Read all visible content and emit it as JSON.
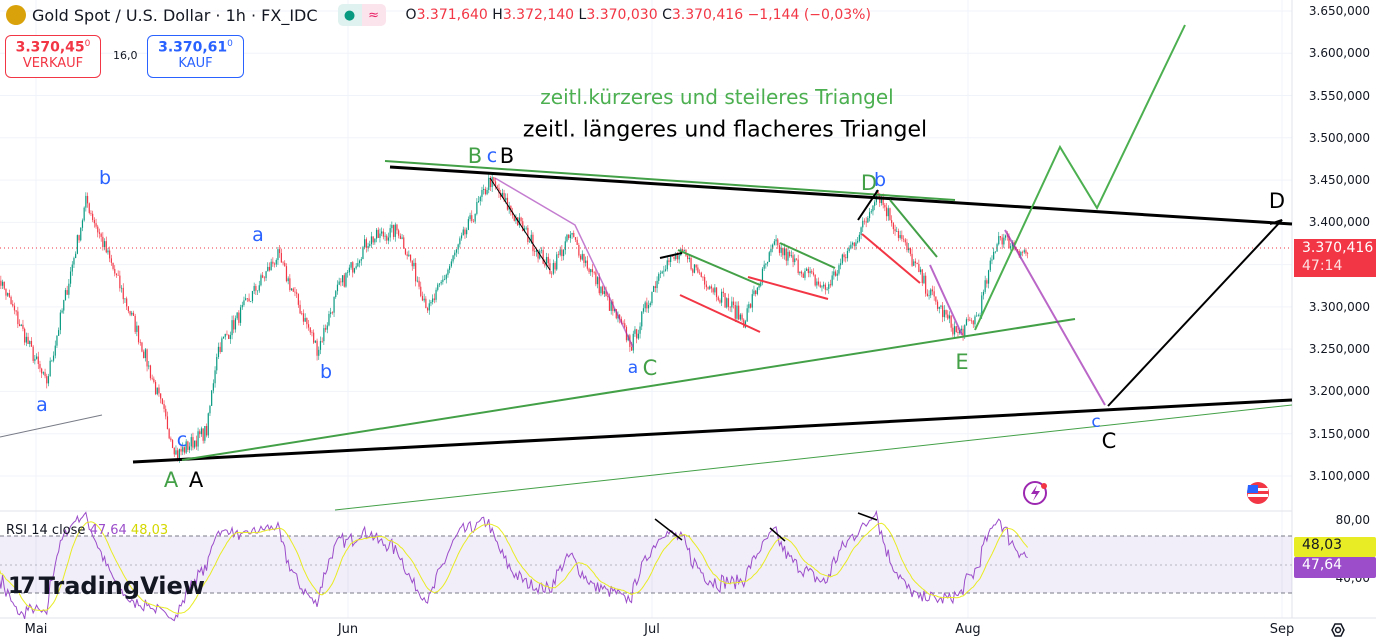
{
  "header": {
    "symbol": "Gold Spot / U.S. Dollar · 1h · FX_IDC",
    "open_label": "O",
    "open": "3.371,640",
    "high_label": "H",
    "high": "3.372,140",
    "low_label": "L",
    "low": "3.370,030",
    "close_label": "C",
    "close": "3.370,416",
    "change": "−1,144 (−0,03%)",
    "status_icons": [
      "market-open-dot-icon",
      "delayed-data-icon"
    ]
  },
  "trade": {
    "sell_price": "3.370,45",
    "sell_sup": "0",
    "sell_label": "VERKAUF",
    "spread": "16,0",
    "buy_price": "3.370,61",
    "buy_sup": "0",
    "buy_label": "KAUF"
  },
  "price_axis": [
    "3.650,000",
    "3.600,000",
    "3.550,000",
    "3.500,000",
    "3.450,000",
    "3.400,000",
    "3.350,000",
    "3.300,000",
    "3.250,000",
    "3.200,000",
    "3.150,000",
    "3.100,000"
  ],
  "last_price": {
    "value": "3.370,416",
    "countdown": "47:14",
    "color": "#f23645"
  },
  "time_axis": [
    "Mai",
    "Jun",
    "Jul",
    "Aug",
    "Sep"
  ],
  "annotations": {
    "title_green": "zeitl.kürzeres und steileres Triangel",
    "title_black": "zeitl. längeres und flacheres Triangel",
    "waves": [
      "a",
      "b",
      "a",
      "b",
      "c",
      "A",
      "A",
      "B",
      "c",
      "B",
      "D",
      "b",
      "a",
      "C",
      "E",
      "c",
      "C",
      "D"
    ]
  },
  "rsi": {
    "label": "RSI 14 close",
    "value": "47,64",
    "ma_value": "48,03",
    "axis": [
      "80,00",
      "40,00"
    ],
    "colors": {
      "rsi": "#9b4dca",
      "ma": "#e8ec25"
    }
  },
  "logo": "TradingView",
  "chart_data": {
    "type": "candlestick",
    "ylim": [
      3090,
      3660
    ],
    "price_path": [
      [
        "Apr 27",
        3344
      ],
      [
        "May 2",
        3208
      ],
      [
        "May 6",
        3426
      ],
      [
        "May 11",
        3273
      ],
      [
        "May 15",
        3125
      ],
      [
        "May 18",
        3154
      ],
      [
        "May 19",
        3249
      ],
      [
        "May 25",
        3361
      ],
      [
        "May 29",
        3249
      ],
      [
        "May 31",
        3320
      ],
      [
        "Jun 3",
        3379
      ],
      [
        "Jun 6",
        3391
      ],
      [
        "Jun 9",
        3296
      ],
      [
        "Jun 15",
        3450
      ],
      [
        "Jun 21",
        3344
      ],
      [
        "Jun 23",
        3385
      ],
      [
        "Jun 29",
        3255
      ],
      [
        "Jul 2",
        3350
      ],
      [
        "Jul 4",
        3361
      ],
      [
        "Jul 10",
        3284
      ],
      [
        "Jul 13",
        3373
      ],
      [
        "Jul 18",
        3320
      ],
      [
        "Jul 22",
        3402
      ],
      [
        "Jul 23",
        3438
      ],
      [
        "Jul 28",
        3320
      ],
      [
        "Jul 31",
        3267
      ],
      [
        "Aug 2",
        3290
      ],
      [
        "Aug 4",
        3385
      ],
      [
        "Aug 7",
        3361
      ],
      [
        "Aug 7",
        3370
      ]
    ],
    "colors": {
      "up": "#089981",
      "down": "#f23645"
    }
  }
}
